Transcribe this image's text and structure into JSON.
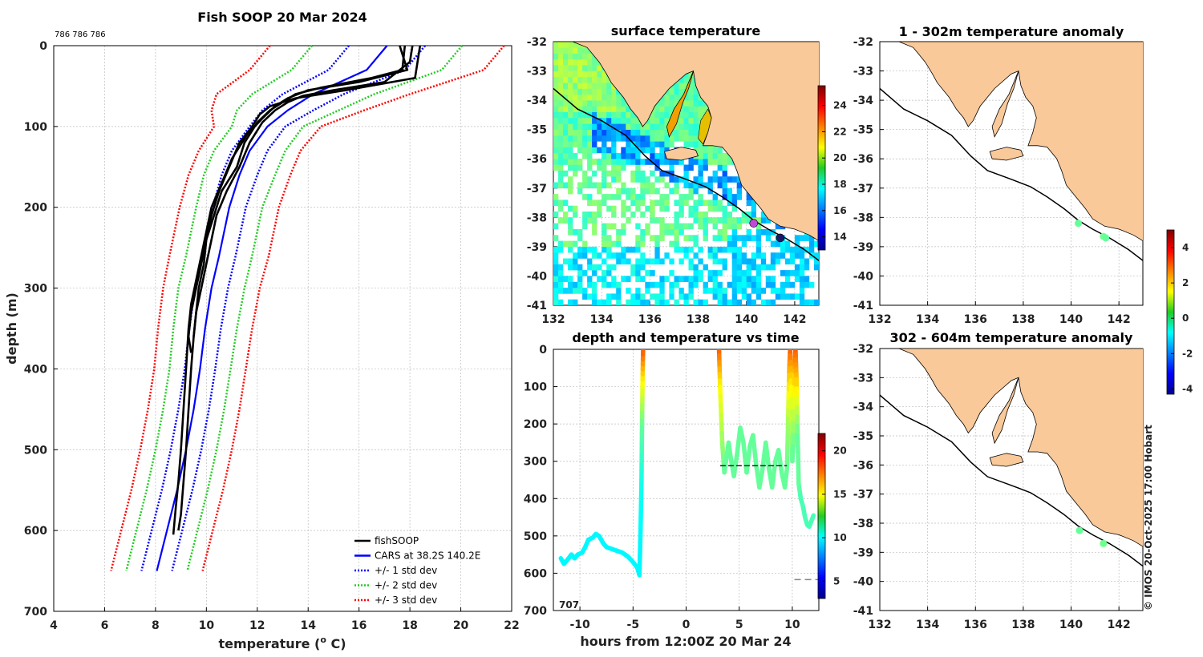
{
  "chart_data": [
    {
      "id": "profile",
      "type": "line",
      "title": "Fish SOOP 20 Mar 2024",
      "annotation": "786 786 786",
      "xlabel_main": "temperature (",
      "xlabel_sup": "o",
      "xlabel_end": " C)",
      "ylabel": "depth (m)",
      "xlim": [
        4,
        22
      ],
      "ylim": [
        700,
        0
      ],
      "xticks": [
        4,
        6,
        8,
        10,
        12,
        14,
        16,
        18,
        20,
        22
      ],
      "yticks": [
        0,
        100,
        200,
        300,
        400,
        500,
        600,
        700
      ],
      "legend": [
        "fishSOOP",
        "CARS at 38.2S 140.2E",
        "+/- 1 std dev",
        "+/- 2 std dev",
        "+/- 3 std dev"
      ],
      "cars": {
        "depth": [
          0,
          30,
          60,
          80,
          100,
          130,
          160,
          200,
          260,
          300,
          350,
          400,
          450,
          500,
          550,
          600,
          650
        ],
        "mean": [
          17.1,
          16.3,
          14.2,
          13.2,
          12.4,
          11.7,
          11.3,
          10.9,
          10.5,
          10.2,
          9.95,
          9.75,
          9.5,
          9.2,
          8.85,
          8.45,
          8.05
        ],
        "sd1": [
          1.5,
          1.5,
          1.2,
          1.0,
          0.7,
          0.7,
          0.7,
          0.65,
          0.65,
          0.65,
          0.62,
          0.6,
          0.6,
          0.6,
          0.6,
          0.6,
          0.6
        ],
        "sd2": [
          2.95,
          2.95,
          2.4,
          2.0,
          1.4,
          1.4,
          1.4,
          1.3,
          1.3,
          1.3,
          1.25,
          1.2,
          1.2,
          1.2,
          1.2,
          1.2,
          1.2
        ],
        "sd3": [
          4.6,
          4.6,
          3.8,
          3.0,
          2.1,
          2.0,
          2.0,
          1.95,
          1.95,
          1.9,
          1.85,
          1.8,
          1.8,
          1.8,
          1.8,
          1.8,
          1.8
        ]
      },
      "fishsoop": [
        {
          "depth": [
            0,
            20,
            45,
            55,
            62,
            70,
            80,
            95,
            120,
            150,
            180,
            210,
            240,
            270,
            300,
            330,
            360
          ],
          "temp": [
            18.1,
            18.0,
            17.0,
            15.0,
            13.8,
            13.2,
            12.7,
            12.2,
            11.7,
            11.3,
            10.8,
            10.4,
            10.2,
            10.0,
            9.8,
            9.6,
            9.5
          ]
        },
        {
          "depth": [
            0,
            30,
            40,
            52,
            60,
            70,
            80,
            95,
            120,
            150,
            180,
            210,
            240,
            270,
            300,
            330,
            360,
            380
          ],
          "temp": [
            17.8,
            17.7,
            16.5,
            14.5,
            13.5,
            13.0,
            12.5,
            12.0,
            11.5,
            11.2,
            10.6,
            10.3,
            10.0,
            9.8,
            9.6,
            9.4,
            9.3,
            9.4
          ]
        },
        {
          "depth": [
            0,
            30,
            45,
            55,
            65,
            75,
            90,
            110,
            140,
            170,
            200,
            230,
            260,
            290,
            320,
            350,
            400,
            450,
            500,
            540,
            570,
            605
          ],
          "temp": [
            17.6,
            17.9,
            16.0,
            14.0,
            13.2,
            12.7,
            12.2,
            11.6,
            11.0,
            10.6,
            10.2,
            10.0,
            9.8,
            9.6,
            9.4,
            9.3,
            9.2,
            9.1,
            9.0,
            8.9,
            8.8,
            8.7
          ]
        },
        {
          "depth": [
            0,
            40,
            55,
            65,
            75,
            85,
            100,
            120,
            150,
            180,
            210,
            240,
            270,
            300,
            330,
            360,
            400,
            450,
            500,
            540,
            580,
            600
          ],
          "temp": [
            18.4,
            18.2,
            15.5,
            13.5,
            12.5,
            12.1,
            11.8,
            11.3,
            10.9,
            10.5,
            10.2,
            10.0,
            9.9,
            9.7,
            9.6,
            9.5,
            9.4,
            9.3,
            9.2,
            9.1,
            9.0,
            8.9
          ]
        }
      ]
    },
    {
      "id": "depth-time",
      "type": "scatter",
      "title": "depth and temperature vs time",
      "xlabel": "hours from 12:00Z 20 Mar 24",
      "corner_label": "707",
      "xlim": [
        -12.5,
        12.5
      ],
      "ylim": [
        700,
        0
      ],
      "xticks": [
        -10,
        -5,
        0,
        5,
        10
      ],
      "yticks": [
        0,
        100,
        200,
        300,
        400,
        500,
        600,
        700
      ],
      "colorbar": {
        "min": 3,
        "max": 22,
        "ticks": [
          5,
          10,
          15,
          20
        ]
      },
      "ref_lines": [
        {
          "x0": 3.2,
          "x1": 9.5,
          "depth": 312
        },
        {
          "x0": 10.2,
          "x1": 12.5,
          "depth": 617
        }
      ],
      "segments": [
        {
          "hours": [
            -11.8,
            -11.5,
            -11.2,
            -10.8,
            -10.5,
            -10.2,
            -9.8,
            -9.5,
            -9.2,
            -8.8,
            -8.5,
            -8.2,
            -7.8,
            -7.5,
            -7.0,
            -6.5,
            -6.0,
            -5.5,
            -5.0,
            -4.6,
            -4.4,
            -4.3,
            -4.2,
            -4.15,
            -4.1,
            -4.05
          ],
          "depth": [
            560,
            575,
            565,
            550,
            560,
            550,
            545,
            530,
            510,
            505,
            495,
            500,
            520,
            530,
            535,
            540,
            545,
            555,
            570,
            585,
            605,
            500,
            350,
            200,
            80,
            0
          ],
          "temp": [
            10,
            10,
            10,
            10,
            10,
            10,
            10,
            10,
            10,
            10,
            10,
            10,
            10,
            10,
            10,
            10,
            10,
            10,
            10,
            10,
            10,
            10,
            10.5,
            12,
            15,
            18
          ]
        },
        {
          "hours": [
            3.1,
            3.2,
            3.4,
            3.6,
            3.8,
            4.0,
            4.2,
            4.5,
            4.8,
            5.1,
            5.4,
            5.7,
            6.0,
            6.3,
            6.6,
            6.9,
            7.2,
            7.5,
            7.8,
            8.1,
            8.4,
            8.7,
            9.0,
            9.3,
            9.5,
            9.6,
            9.7,
            9.8,
            9.9,
            10.0,
            10.1,
            10.2,
            10.3,
            10.4,
            10.5,
            10.6,
            10.8,
            11.0,
            11.2,
            11.4,
            11.6,
            11.8,
            12.0
          ],
          "depth": [
            0,
            100,
            250,
            330,
            290,
            250,
            290,
            340,
            280,
            210,
            250,
            330,
            260,
            230,
            310,
            370,
            320,
            250,
            320,
            370,
            300,
            270,
            330,
            370,
            320,
            200,
            60,
            0,
            100,
            300,
            250,
            60,
            0,
            80,
            230,
            360,
            400,
            420,
            450,
            470,
            475,
            460,
            445
          ],
          "temp": [
            18,
            15,
            13,
            12,
            12,
            12,
            12,
            12,
            12,
            12,
            12,
            12,
            12,
            12,
            12,
            12,
            12,
            12,
            12,
            12,
            12,
            12,
            12,
            12,
            12,
            13,
            16,
            18,
            15,
            12,
            12,
            16,
            18,
            16,
            12,
            12,
            11.5,
            11.5,
            11.5,
            11.5,
            11.5,
            11.5,
            11.5
          ]
        }
      ]
    },
    {
      "id": "sst-map",
      "type": "heatmap",
      "title": "surface temperature",
      "xlim": [
        132,
        143
      ],
      "ylim": [
        -41,
        -32
      ],
      "xticks": [
        132,
        134,
        136,
        138,
        140,
        142
      ],
      "yticks": [
        -32,
        -33,
        -34,
        -35,
        -36,
        -37,
        -38,
        -39,
        -40,
        -41
      ],
      "colorbar": {
        "min": 13,
        "max": 25.5,
        "ticks": [
          14,
          16,
          18,
          20,
          22,
          24
        ]
      },
      "markers": [
        {
          "lon": 140.3,
          "lat": -38.2,
          "color": "#c04ad8"
        },
        {
          "lon": 141.4,
          "lat": -38.7,
          "color": "#1a1a6a"
        }
      ]
    },
    {
      "id": "anom-upper",
      "type": "scatter",
      "title": "1 - 302m temperature anomaly",
      "xlim": [
        132,
        143
      ],
      "ylim": [
        -41,
        -32
      ],
      "xticks": [
        132,
        134,
        136,
        138,
        140,
        142
      ],
      "yticks": [
        -32,
        -33,
        -34,
        -35,
        -36,
        -37,
        -38,
        -39,
        -40,
        -41
      ],
      "points": [
        {
          "lon": 140.3,
          "lat": -38.2,
          "anomaly": 0.1
        },
        {
          "lon": 141.35,
          "lat": -38.65,
          "anomaly": 0.2
        },
        {
          "lon": 141.45,
          "lat": -38.7,
          "anomaly": 0.1
        }
      ]
    },
    {
      "id": "anom-lower",
      "type": "scatter",
      "title": "302 - 604m temperature anomaly",
      "xlim": [
        132,
        143
      ],
      "ylim": [
        -41,
        -32
      ],
      "xticks": [
        132,
        134,
        136,
        138,
        140,
        142
      ],
      "yticks": [
        -32,
        -33,
        -34,
        -35,
        -36,
        -37,
        -38,
        -39,
        -40,
        -41
      ],
      "colorbar": {
        "min": -4.3,
        "max": 5,
        "ticks": [
          -4,
          -2,
          0,
          2,
          4
        ]
      },
      "points": [
        {
          "lon": 140.35,
          "lat": -38.25,
          "anomaly": 0.1
        },
        {
          "lon": 141.35,
          "lat": -38.7,
          "anomaly": 0.2
        }
      ]
    }
  ],
  "credit": "© IMOS 20-Oct-2025 17:00 Hobart",
  "colors": {
    "land": "#f9c99a",
    "fishsoop": "#000000",
    "cars": "#0000ff",
    "sd1": "#0000ff",
    "sd2": "#22cc22",
    "sd3": "#ff0000"
  }
}
